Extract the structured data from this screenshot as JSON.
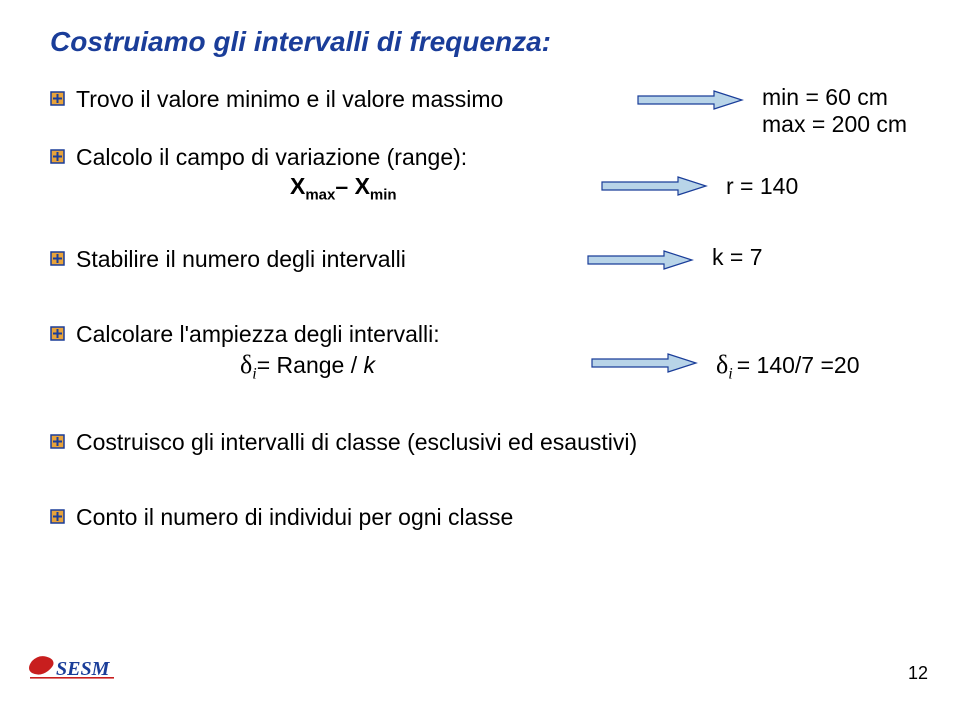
{
  "colors": {
    "title": "#1a3d99",
    "bullet_border": "#1a3d99",
    "bullet_fill": "#e8a33a",
    "arrow_border": "#1a3d99",
    "arrow_fill": "#b8d4e8",
    "logo_red": "#c81e1e",
    "logo_text": "#1a3d99"
  },
  "title": "Costruiamo gli intervalli di frequenza:",
  "items": {
    "minmax_intro": "Trovo il valore minimo e il valore massimo",
    "minmax_res1": "min = 60 cm",
    "minmax_res2": "max = 200 cm",
    "range_label": "Calcolo il campo di variazione (range):",
    "range_formula_lhs": "X",
    "range_formula_sub1": "max",
    "range_formula_dash": "– ",
    "range_formula_sub2": "min",
    "range_res": "r = 140",
    "stabilire": "Stabilire il numero degli intervalli",
    "stabilire_res": "k = 7",
    "ampiezza": "Calcolare l'ampiezza degli intervalli:",
    "ampiezza_formula_delta": "δ",
    "ampiezza_formula_sub": "i",
    "ampiezza_formula_eq": "= Range / ",
    "ampiezza_formula_k": "k",
    "ampiezza_res_p1": "δ",
    "ampiezza_res_sub": "i ",
    "ampiezza_res_p2": "= 140/7 =20",
    "costruisco": "Costruisco gli intervalli di classe (esclusivi ed esaustivi)",
    "conto": "Conto il numero di individui per ogni classe"
  },
  "page_number": "12",
  "logo_text": "SESM"
}
